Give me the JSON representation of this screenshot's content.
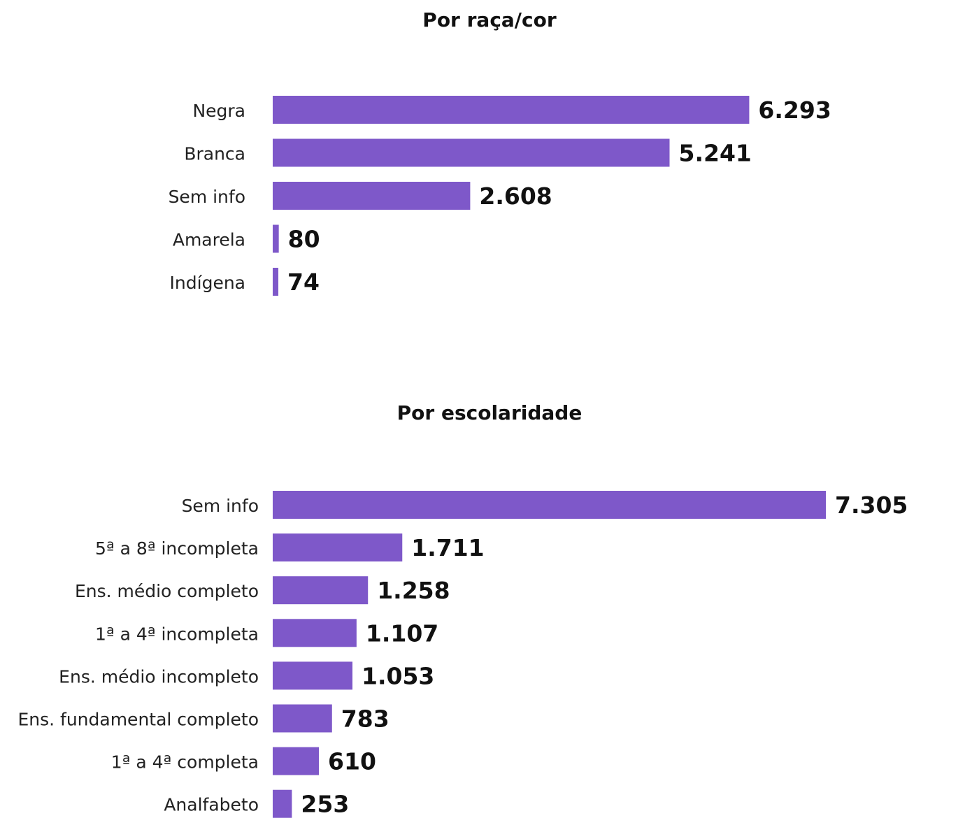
{
  "colors": {
    "bar": "#7e58c9",
    "text": "#111111",
    "label": "#222222"
  },
  "chart_data": [
    {
      "type": "bar",
      "orientation": "horizontal",
      "title": "Por raça/cor",
      "categories": [
        "Negra",
        "Branca",
        "Sem info",
        "Amarela",
        "Indígena"
      ],
      "values": [
        6293,
        5241,
        2608,
        80,
        74
      ],
      "value_labels": [
        "6.293",
        "5.241",
        "2.608",
        "80",
        "74"
      ]
    },
    {
      "type": "bar",
      "orientation": "horizontal",
      "title": "Por escolaridade",
      "categories": [
        "Sem info",
        "5ª a 8ª incompleta",
        "Ens. médio completo",
        "1ª a 4ª incompleta",
        "Ens. médio incompleto",
        "Ens. fundamental completo",
        "1ª a 4ª completa",
        "Analfabeto"
      ],
      "values": [
        7305,
        1711,
        1258,
        1107,
        1053,
        783,
        610,
        253
      ],
      "value_labels": [
        "7.305",
        "1.711",
        "1.258",
        "1.107",
        "1.053",
        "783",
        "610",
        "253"
      ]
    }
  ]
}
